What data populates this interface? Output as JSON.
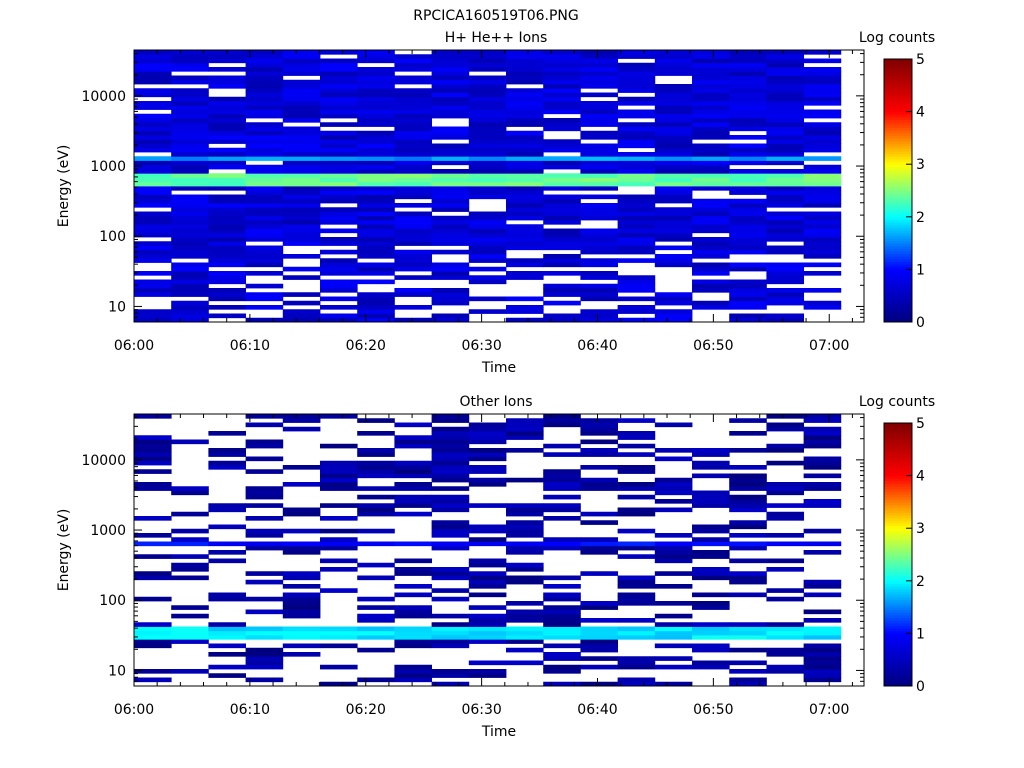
{
  "figure_title": "RPCICA160519T06.PNG",
  "colorscale": [
    "#00007f",
    "#0000ff",
    "#00ffff",
    "#ffff00",
    "#ff0000",
    "#7f0000"
  ],
  "chart_data": [
    {
      "type": "heatmap",
      "title": "H+ He++ Ions",
      "xlabel": "Time",
      "ylabel": "Energy (eV)",
      "y_scale": "log",
      "ylim": [
        6,
        45000
      ],
      "xlim": [
        "06:00",
        "07:03"
      ],
      "x_ticks": [
        "06:00",
        "06:10",
        "06:20",
        "06:30",
        "06:40",
        "06:50",
        "07:00"
      ],
      "y_ticks": [
        "10",
        "100",
        "1000",
        "10000"
      ],
      "colorbar": {
        "label": "Log counts",
        "range": [
          0,
          5
        ],
        "ticks": [
          "0",
          "1",
          "2",
          "3",
          "4",
          "5"
        ]
      },
      "time_bins": 19,
      "data_end": "07:01",
      "bands": [
        {
          "energy_low": 1200,
          "energy_high": 1400,
          "log_counts": 1.6
        },
        {
          "energy_low": 550,
          "energy_high": 800,
          "log_counts": 2.4
        }
      ],
      "background_log_counts": 0.6,
      "empty_fraction": 0.12
    },
    {
      "type": "heatmap",
      "title": "Other Ions",
      "xlabel": "Time",
      "ylabel": "Energy (eV)",
      "y_scale": "log",
      "ylim": [
        6,
        45000
      ],
      "xlim": [
        "06:00",
        "07:03"
      ],
      "x_ticks": [
        "06:00",
        "06:10",
        "06:20",
        "06:30",
        "06:40",
        "06:50",
        "07:00"
      ],
      "y_ticks": [
        "10",
        "100",
        "1000",
        "10000"
      ],
      "colorbar": {
        "label": "Log counts",
        "range": [
          0,
          5
        ],
        "ticks": [
          "0",
          "1",
          "2",
          "3",
          "4",
          "5"
        ]
      },
      "time_bins": 19,
      "data_end": "07:01",
      "bands": [
        {
          "energy_low": 600,
          "energy_high": 700,
          "log_counts": 1.0
        },
        {
          "energy_low": 28,
          "energy_high": 42,
          "log_counts": 1.9
        }
      ],
      "background_log_counts": 0.2,
      "empty_fraction": 0.55
    }
  ]
}
